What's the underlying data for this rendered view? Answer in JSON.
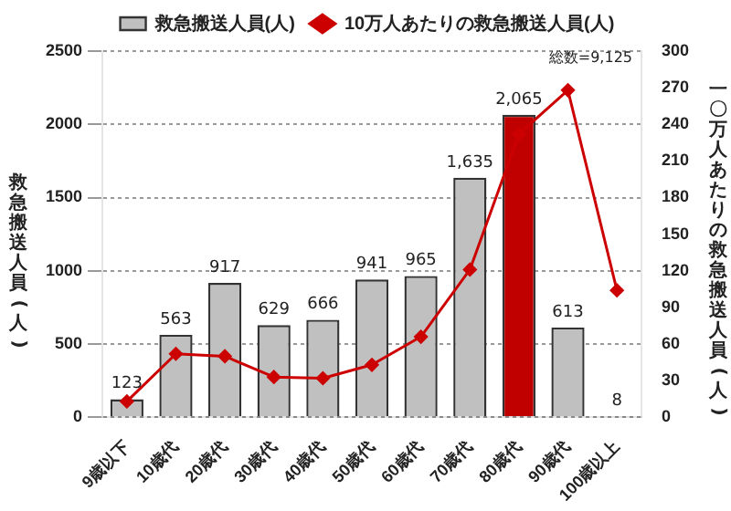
{
  "chart_data": {
    "type": "bar",
    "ylabel": "救急搬送人員(人)",
    "y2label": "一〇万人あたりの救急搬送人員(人)",
    "categories": [
      "9歳以下",
      "10歳代",
      "20歳代",
      "30歳代",
      "40歳代",
      "50歳代",
      "60歳代",
      "70歳代",
      "80歳代",
      "90歳代",
      "100歳以上"
    ],
    "series": [
      {
        "name": "救急搬送人員(人)",
        "colors": [
          "#c0c0c0",
          "#c0c0c0",
          "#c0c0c0",
          "#c0c0c0",
          "#c0c0c0",
          "#c0c0c0",
          "#c0c0c0",
          "#c0c0c0",
          "#c00000",
          "#c0c0c0",
          "#c0c0c0"
        ],
        "values": [
          123,
          563,
          917,
          629,
          666,
          941,
          965,
          1635,
          2065,
          613,
          8
        ],
        "value_labels": [
          "123",
          "563",
          "917",
          "629",
          "666",
          "941",
          "965",
          "1,635",
          "2,065",
          "613",
          "8"
        ]
      },
      {
        "name": "10万人あたりの救急搬送人員(人)",
        "type": "line",
        "axis": "y2",
        "color": "#cc0000",
        "marker": "diamond",
        "values": [
          13,
          52,
          50,
          33,
          32,
          43,
          66,
          121,
          232,
          268,
          104
        ]
      }
    ],
    "ylim": [
      0,
      2500
    ],
    "yticks": [
      0,
      500,
      1000,
      1500,
      2000,
      2500
    ],
    "y2lim": [
      0,
      300
    ],
    "y2ticks": [
      0,
      30,
      60,
      90,
      120,
      150,
      180,
      210,
      240,
      270,
      300
    ],
    "grid": "y",
    "legend": "top",
    "annotations": [
      "総数=9,125"
    ]
  }
}
